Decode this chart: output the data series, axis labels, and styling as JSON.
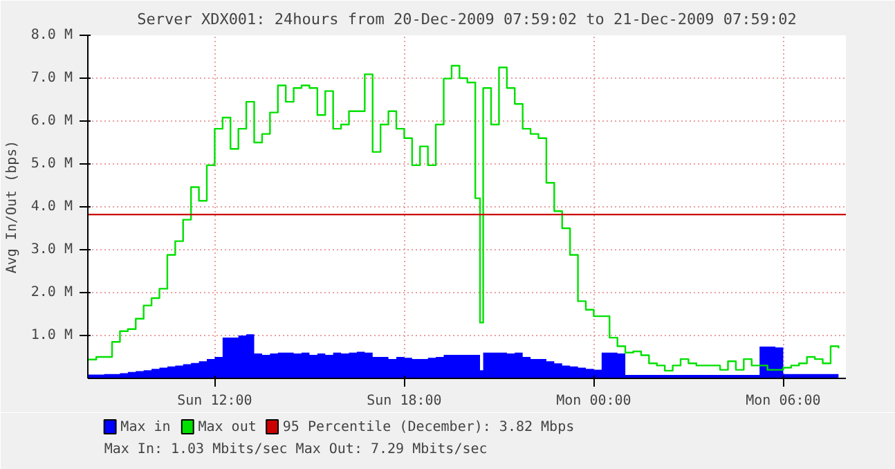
{
  "chart_data": {
    "type": "step",
    "title": "Server XDX001: 24hours from 20-Dec-2009 07:59:02 to 21-Dec-2009 07:59:02",
    "ylabel": "Avg In/Out (bps)",
    "x": [
      "2009-12-20T08:00",
      "2009-12-20T08:15",
      "2009-12-20T08:30",
      "2009-12-20T08:45",
      "2009-12-20T09:00",
      "2009-12-20T09:15",
      "2009-12-20T09:30",
      "2009-12-20T09:45",
      "2009-12-20T10:00",
      "2009-12-20T10:15",
      "2009-12-20T10:30",
      "2009-12-20T10:45",
      "2009-12-20T11:00",
      "2009-12-20T11:15",
      "2009-12-20T11:30",
      "2009-12-20T11:45",
      "2009-12-20T12:00",
      "2009-12-20T12:15",
      "2009-12-20T12:30",
      "2009-12-20T12:45",
      "2009-12-20T13:00",
      "2009-12-20T13:15",
      "2009-12-20T13:30",
      "2009-12-20T13:45",
      "2009-12-20T14:00",
      "2009-12-20T14:15",
      "2009-12-20T14:30",
      "2009-12-20T14:45",
      "2009-12-20T15:00",
      "2009-12-20T15:15",
      "2009-12-20T15:30",
      "2009-12-20T15:45",
      "2009-12-20T16:00",
      "2009-12-20T16:15",
      "2009-12-20T16:30",
      "2009-12-20T16:45",
      "2009-12-20T17:00",
      "2009-12-20T17:15",
      "2009-12-20T17:30",
      "2009-12-20T17:45",
      "2009-12-20T18:00",
      "2009-12-20T18:15",
      "2009-12-20T18:30",
      "2009-12-20T18:45",
      "2009-12-20T19:00",
      "2009-12-20T19:15",
      "2009-12-20T19:30",
      "2009-12-20T19:45",
      "2009-12-20T20:00",
      "2009-12-20T20:15",
      "2009-12-20T20:24",
      "2009-12-20T20:30",
      "2009-12-20T20:45",
      "2009-12-20T21:00",
      "2009-12-20T21:15",
      "2009-12-20T21:30",
      "2009-12-20T21:45",
      "2009-12-20T22:00",
      "2009-12-20T22:15",
      "2009-12-20T22:30",
      "2009-12-20T22:45",
      "2009-12-20T23:00",
      "2009-12-20T23:15",
      "2009-12-20T23:30",
      "2009-12-20T23:45",
      "2009-12-21T00:00",
      "2009-12-21T00:15",
      "2009-12-21T00:30",
      "2009-12-21T00:45",
      "2009-12-21T01:00",
      "2009-12-21T01:15",
      "2009-12-21T01:30",
      "2009-12-21T01:45",
      "2009-12-21T02:00",
      "2009-12-21T02:15",
      "2009-12-21T02:30",
      "2009-12-21T02:45",
      "2009-12-21T03:00",
      "2009-12-21T03:15",
      "2009-12-21T03:30",
      "2009-12-21T03:45",
      "2009-12-21T04:00",
      "2009-12-21T04:15",
      "2009-12-21T04:30",
      "2009-12-21T04:45",
      "2009-12-21T05:00",
      "2009-12-21T05:15",
      "2009-12-21T05:30",
      "2009-12-21T05:45",
      "2009-12-21T06:00",
      "2009-12-21T06:15",
      "2009-12-21T06:30",
      "2009-12-21T06:45",
      "2009-12-21T07:00",
      "2009-12-21T07:15",
      "2009-12-21T07:30",
      "2009-12-21T07:45"
    ],
    "series": [
      {
        "name": "Max in",
        "type": "area",
        "color": "#0000ff",
        "values": [
          0.09,
          0.09,
          0.1,
          0.1,
          0.12,
          0.15,
          0.17,
          0.19,
          0.22,
          0.25,
          0.28,
          0.3,
          0.33,
          0.36,
          0.4,
          0.45,
          0.5,
          0.95,
          0.95,
          1.0,
          1.03,
          0.58,
          0.55,
          0.58,
          0.6,
          0.6,
          0.58,
          0.6,
          0.55,
          0.58,
          0.55,
          0.6,
          0.58,
          0.6,
          0.62,
          0.6,
          0.5,
          0.5,
          0.45,
          0.5,
          0.48,
          0.45,
          0.45,
          0.48,
          0.5,
          0.55,
          0.55,
          0.55,
          0.55,
          0.55,
          0.19,
          0.6,
          0.6,
          0.6,
          0.58,
          0.6,
          0.5,
          0.45,
          0.45,
          0.4,
          0.35,
          0.3,
          0.28,
          0.25,
          0.22,
          0.2,
          0.6,
          0.6,
          0.58,
          0.08,
          0.08,
          0.08,
          0.08,
          0.08,
          0.08,
          0.08,
          0.08,
          0.08,
          0.08,
          0.08,
          0.08,
          0.08,
          0.08,
          0.08,
          0.08,
          0.08,
          0.74,
          0.74,
          0.72,
          0.1,
          0.1,
          0.1,
          0.1,
          0.1,
          0.1,
          0.1,
          0.1
        ]
      },
      {
        "name": "Max out",
        "color": "#00e000",
        "values": [
          0.44,
          0.5,
          0.5,
          0.85,
          1.1,
          1.15,
          1.39,
          1.7,
          1.87,
          2.09,
          2.88,
          3.2,
          3.7,
          4.46,
          4.14,
          4.97,
          5.82,
          6.08,
          5.35,
          5.82,
          6.45,
          5.5,
          5.7,
          6.2,
          6.83,
          6.45,
          6.77,
          6.83,
          6.77,
          6.14,
          6.7,
          5.82,
          5.92,
          6.23,
          6.23,
          7.09,
          5.28,
          5.92,
          6.23,
          5.82,
          5.6,
          4.97,
          5.41,
          4.97,
          5.92,
          6.99,
          7.29,
          7.0,
          6.9,
          4.2,
          1.3,
          6.77,
          5.92,
          7.25,
          6.77,
          6.4,
          5.82,
          5.7,
          5.6,
          4.56,
          3.9,
          3.5,
          2.88,
          1.8,
          1.6,
          1.45,
          1.45,
          0.95,
          0.75,
          0.6,
          0.63,
          0.54,
          0.35,
          0.3,
          0.18,
          0.3,
          0.45,
          0.35,
          0.3,
          0.3,
          0.3,
          0.2,
          0.4,
          0.2,
          0.45,
          0.3,
          0.3,
          0.2,
          0.2,
          0.25,
          0.3,
          0.35,
          0.5,
          0.45,
          0.35,
          0.75,
          0.7
        ]
      }
    ],
    "ref_lines": [
      {
        "axis": "y",
        "value": 3.82,
        "label": "95 Percentile (December): 3.82 Mbps",
        "color": "#cc0000"
      }
    ],
    "xlim": [
      "2009-12-20T07:59",
      "2009-12-21T07:59"
    ],
    "xticks": [
      {
        "value": "2009-12-20T12:00",
        "label": "Sun 12:00"
      },
      {
        "value": "2009-12-20T18:00",
        "label": "Sun 18:00"
      },
      {
        "value": "2009-12-21T00:00",
        "label": "Mon 00:00"
      },
      {
        "value": "2009-12-21T06:00",
        "label": "Mon 06:00"
      }
    ],
    "ylim": [
      0,
      8
    ],
    "yticks": [
      {
        "value": 1,
        "label": "1.0 M"
      },
      {
        "value": 2,
        "label": "2.0 M"
      },
      {
        "value": 3,
        "label": "3.0 M"
      },
      {
        "value": 4,
        "label": "4.0 M"
      },
      {
        "value": 5,
        "label": "5.0 M"
      },
      {
        "value": 6,
        "label": "6.0 M"
      },
      {
        "value": 7,
        "label": "7.0 M"
      },
      {
        "value": 8,
        "label": "8.0 M"
      }
    ],
    "grid": true,
    "legend": "bottom",
    "annotations": [
      "Max In: 1.03 Mbits/sec  Max Out: 7.29 Mbits/sec"
    ]
  }
}
